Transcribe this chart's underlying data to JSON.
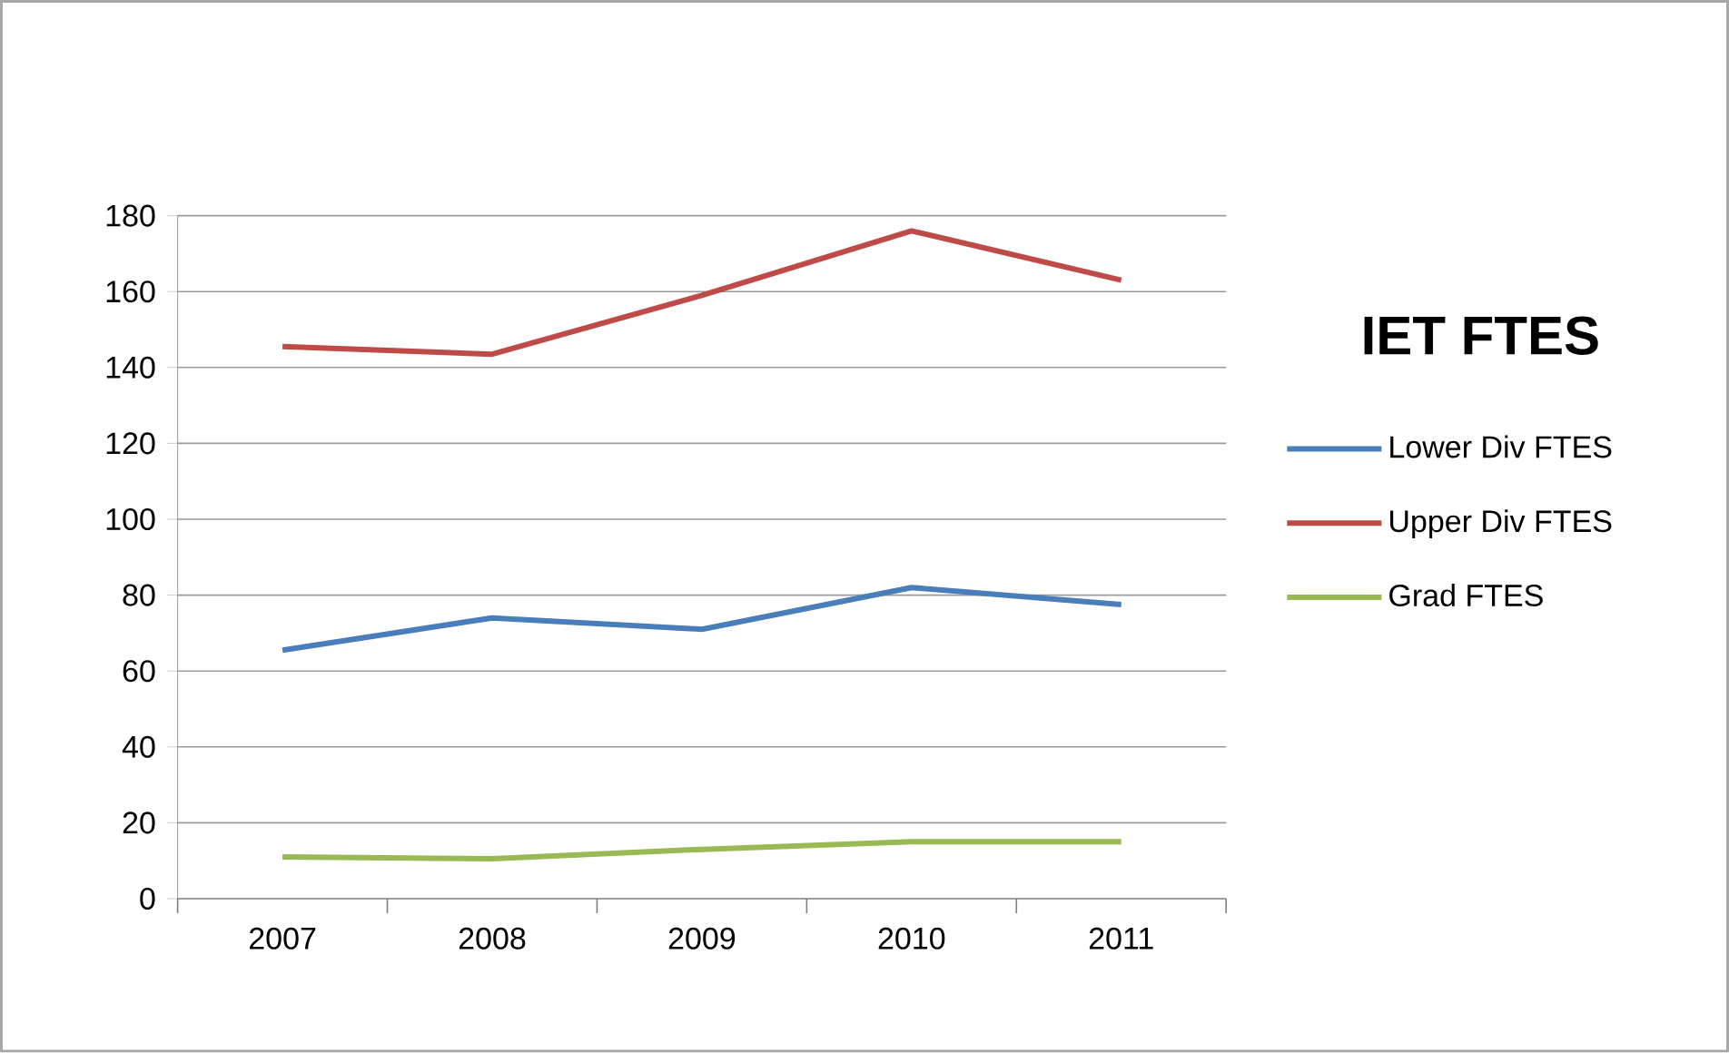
{
  "chart_data": {
    "type": "line",
    "title": "IET FTES",
    "categories": [
      "2007",
      "2008",
      "2009",
      "2010",
      "2011"
    ],
    "series": [
      {
        "name": "Lower Div FTES",
        "color": "#4a7ebb",
        "values": [
          65.5,
          74,
          71,
          82,
          77.5
        ]
      },
      {
        "name": "Upper Div FTES",
        "color": "#be4b48",
        "values": [
          145.5,
          143.5,
          159,
          176,
          163
        ]
      },
      {
        "name": "Grad FTES",
        "color": "#98b954",
        "values": [
          11,
          10.5,
          13,
          15,
          15
        ]
      }
    ],
    "ylim": [
      0,
      180
    ],
    "yticks": [
      0,
      20,
      40,
      60,
      80,
      100,
      120,
      140,
      160,
      180
    ],
    "grid": "y",
    "legend": "right",
    "marker": "none",
    "line_style": "solid"
  }
}
